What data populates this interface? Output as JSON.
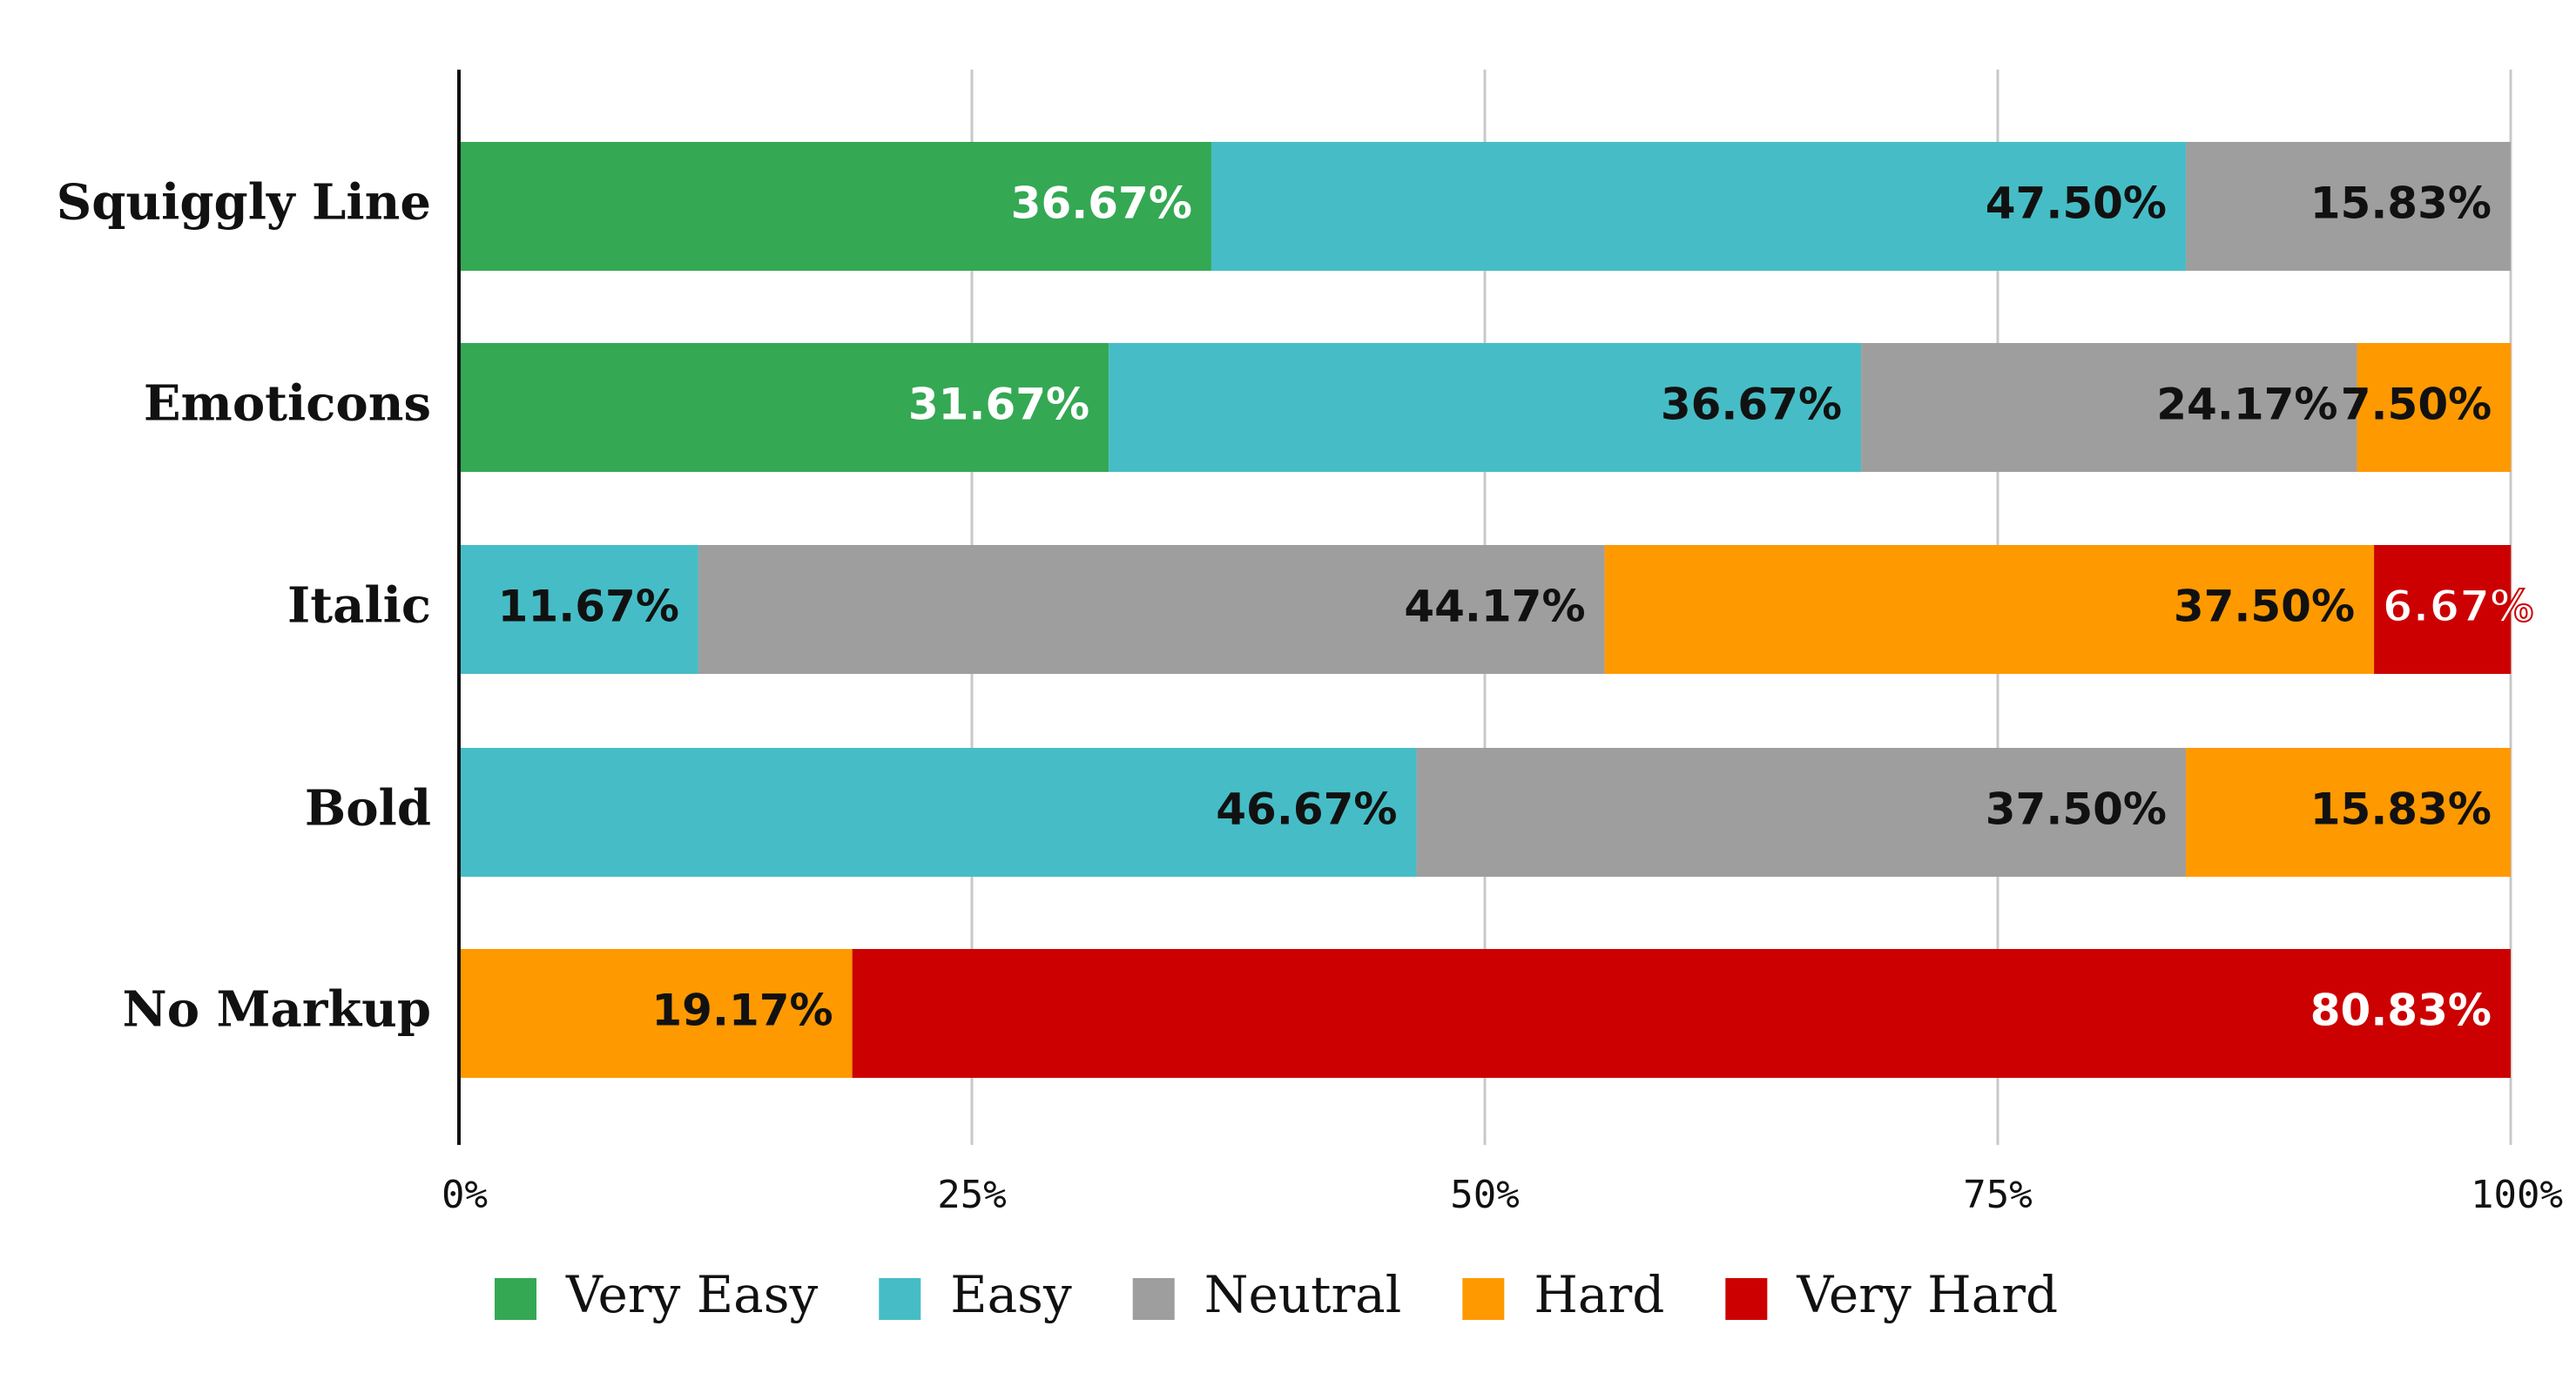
{
  "chart_data": {
    "type": "bar",
    "orientation": "horizontal",
    "stacked": "percent",
    "categories": [
      "Squiggly Line",
      "Emoticons",
      "Italic",
      "Bold",
      "No Markup"
    ],
    "series": [
      {
        "name": "Very Easy",
        "color": "#34a853",
        "label_color": "#ffffff",
        "values": [
          36.67,
          31.67,
          0,
          0,
          0
        ],
        "labels": [
          "36.67%",
          "31.67%",
          "",
          "",
          ""
        ]
      },
      {
        "name": "Easy",
        "color": "#46bdc6",
        "label_color": "#111111",
        "values": [
          47.5,
          36.67,
          11.67,
          46.67,
          0
        ],
        "labels": [
          "47.50%",
          "36.67%",
          "11.67%",
          "46.67%",
          ""
        ]
      },
      {
        "name": "Neutral",
        "color": "#9e9e9e",
        "label_color": "#111111",
        "values": [
          15.83,
          24.17,
          44.17,
          37.5,
          0
        ],
        "labels": [
          "15.83%",
          "24.17%",
          "44.17%",
          "37.50%",
          ""
        ]
      },
      {
        "name": "Hard",
        "color": "#ff9900",
        "label_color": "#111111",
        "values": [
          0,
          7.5,
          37.5,
          15.83,
          19.17
        ],
        "labels": [
          "",
          "7.50%",
          "37.50%",
          "15.83%",
          "19.17%"
        ]
      },
      {
        "name": "Very Hard",
        "color": "#cc0000",
        "label_color": "#ffffff",
        "values": [
          0,
          0,
          6.67,
          0,
          80.83
        ],
        "labels": [
          "",
          "",
          "6.67%",
          "",
          "80.83%"
        ]
      }
    ],
    "x_ticks": [
      "0%",
      "25%",
      "50%",
      "75%",
      "100%"
    ],
    "xlim": [
      0,
      100
    ],
    "grid": true,
    "legend_position": "bottom",
    "title": "",
    "xlabel": "",
    "ylabel": ""
  }
}
